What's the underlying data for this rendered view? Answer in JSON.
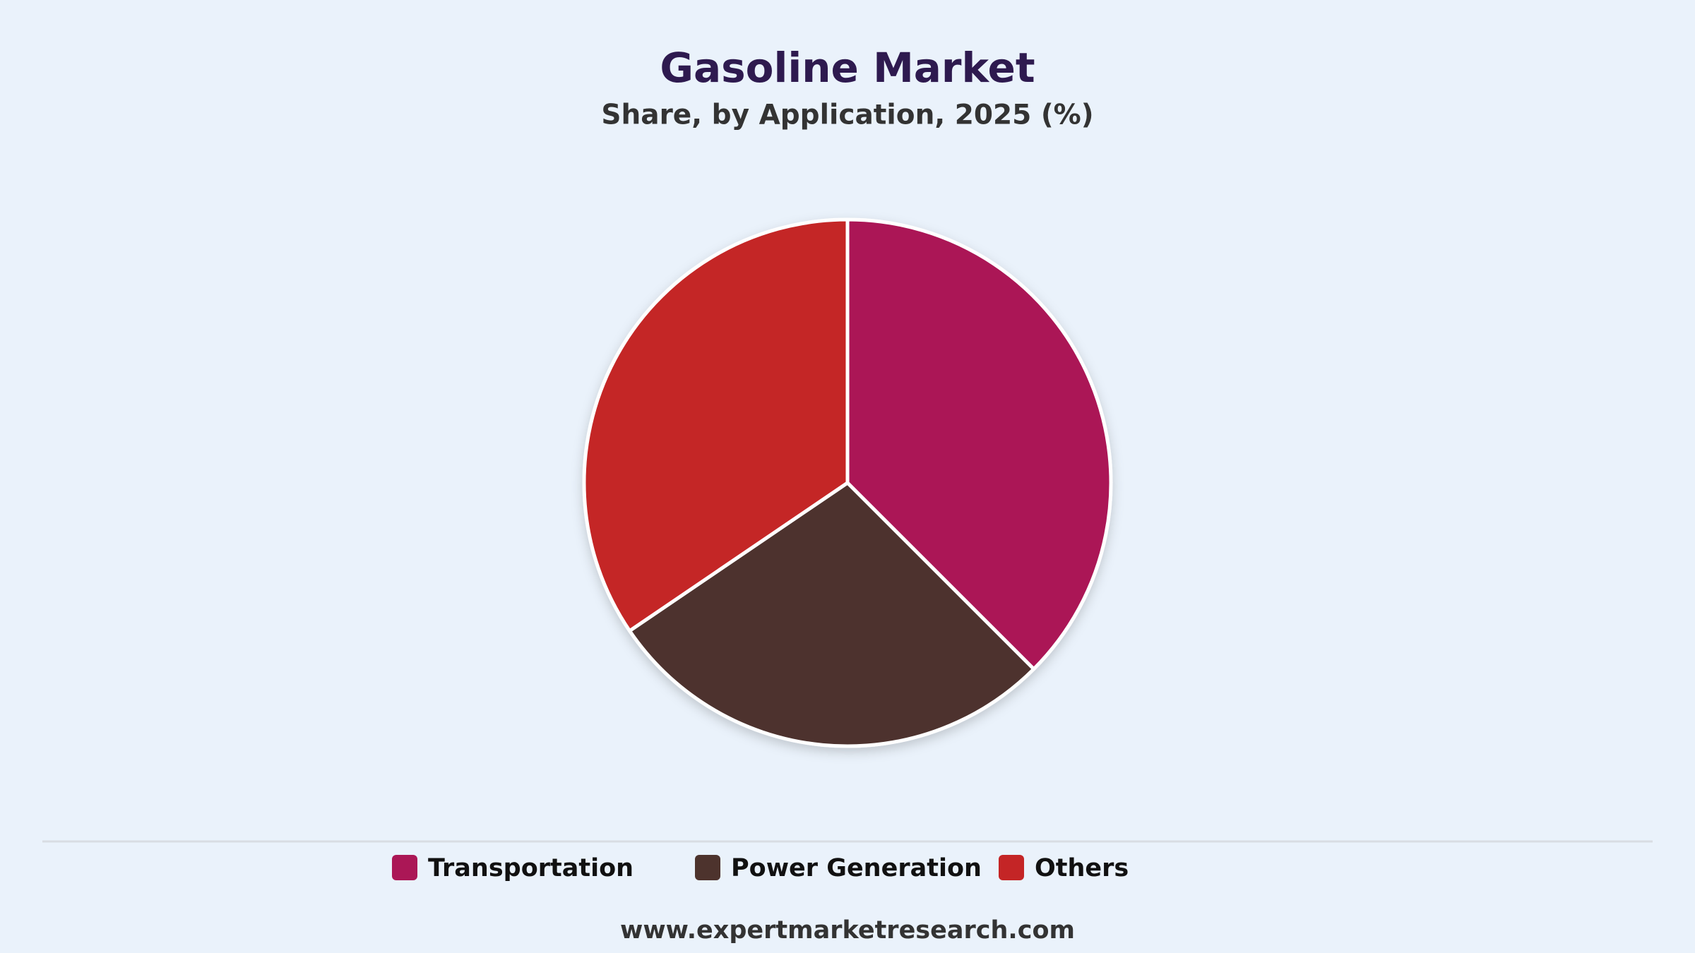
{
  "chart_data": {
    "type": "pie",
    "title": "Gasoline Market",
    "subtitle": "Share, by Application, 2025 (%)",
    "categories": [
      "Transportation",
      "Power Generation",
      "Others"
    ],
    "values": [
      37.5,
      28,
      34.5
    ],
    "colors": [
      "#ab1756",
      "#4d332d",
      "#c42526"
    ],
    "legend": "bottom",
    "source": "www.expertmarketresearch.com"
  }
}
